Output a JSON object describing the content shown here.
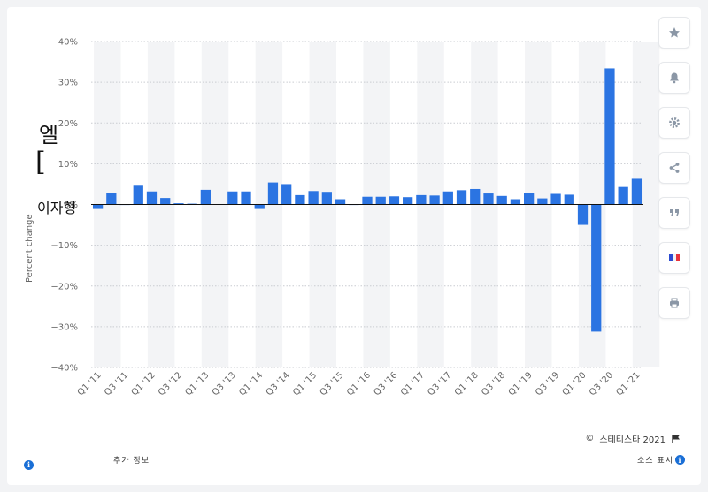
{
  "chart_data": {
    "type": "bar",
    "ylabel": "Percent change",
    "ylim": [
      -40,
      40
    ],
    "ytick_labels": [
      "40%",
      "30%",
      "20%",
      "10%",
      "0%",
      "−10%",
      "−20%",
      "−30%",
      "−40%"
    ],
    "ytick_values": [
      40,
      30,
      20,
      10,
      0,
      -10,
      -20,
      -30,
      -40
    ],
    "xtick_labels": [
      "Q1 '11",
      "Q3 '11",
      "Q1 '12",
      "Q3 '12",
      "Q1 '13",
      "Q3 '13",
      "Q1 '14",
      "Q3 '14",
      "Q1 '15",
      "Q3 '15",
      "Q1 '16",
      "Q3 '16",
      "Q1 '17",
      "Q3 '17",
      "Q1 '18",
      "Q3 '18",
      "Q1 '19",
      "Q3 '19",
      "Q1 '20",
      "Q3 '20",
      "Q1 '21"
    ],
    "categories": [
      "Q1 '11",
      "Q2 '11",
      "Q3 '11",
      "Q4 '11",
      "Q1 '12",
      "Q2 '12",
      "Q3 '12",
      "Q4 '12",
      "Q1 '13",
      "Q2 '13",
      "Q3 '13",
      "Q4 '13",
      "Q1 '14",
      "Q2 '14",
      "Q3 '14",
      "Q4 '14",
      "Q1 '15",
      "Q2 '15",
      "Q3 '15",
      "Q4 '15",
      "Q1 '16",
      "Q2 '16",
      "Q3 '16",
      "Q4 '16",
      "Q1 '17",
      "Q2 '17",
      "Q3 '17",
      "Q4 '17",
      "Q1 '18",
      "Q2 '18",
      "Q3 '18",
      "Q4 '18",
      "Q1 '19",
      "Q2 '19",
      "Q3 '19",
      "Q4 '19",
      "Q1 '20",
      "Q2 '20",
      "Q3 '20",
      "Q4 '20",
      "Q1 '21"
    ],
    "values": [
      -1.1,
      2.9,
      0,
      4.6,
      3.2,
      1.6,
      0.3,
      0.2,
      3.6,
      0.1,
      3.2,
      3.2,
      -1.1,
      5.4,
      5.0,
      2.3,
      3.3,
      3.1,
      1.3,
      0,
      1.9,
      1.9,
      2.0,
      1.8,
      2.3,
      2.2,
      3.2,
      3.5,
      3.8,
      2.7,
      2.1,
      1.3,
      2.9,
      1.5,
      2.6,
      2.4,
      -5.0,
      -31.2,
      33.4,
      4.3,
      6.3
    ],
    "bar_color": "#2b74e2",
    "grid": true
  },
  "overlay": {
    "char_a": "엘",
    "char_b": "[",
    "char_c": "이자형"
  },
  "footer": {
    "copyright_symbol": "©",
    "credit": "스테티스타 2021",
    "more_info": "추가 정보",
    "source": "소스 표시",
    "info_glyph": "i"
  },
  "sidebar": {
    "icons": [
      "star-icon",
      "bell-icon",
      "gear-icon",
      "share-icon",
      "quote-icon",
      "flag-fr-icon",
      "print-icon"
    ]
  },
  "colors": {
    "flag_blue": "#2c4bd1",
    "flag_red": "#e8333c",
    "icon_gray": "#8b97a6"
  }
}
